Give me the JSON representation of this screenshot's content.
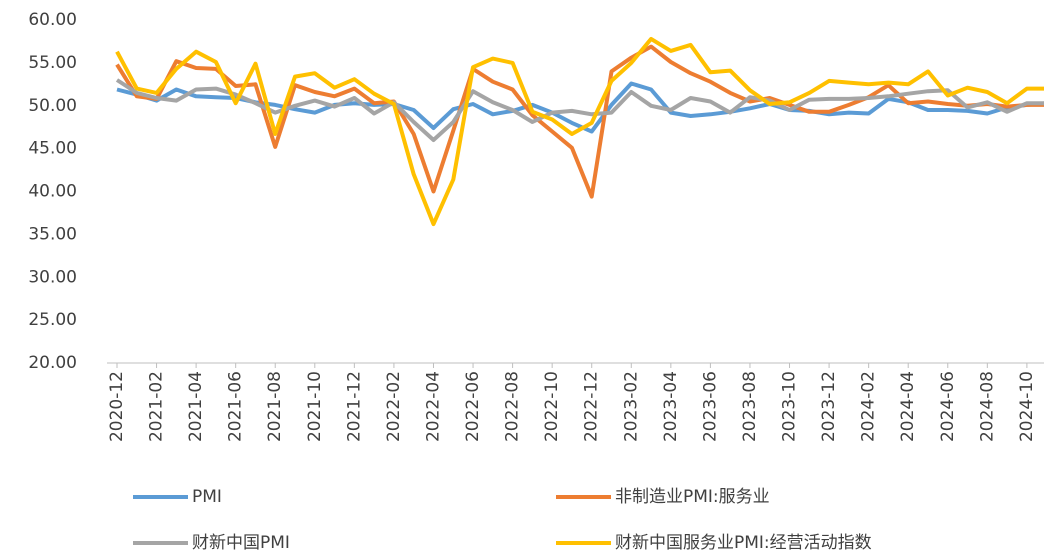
{
  "chart_data": {
    "type": "line",
    "categories": [
      "2020-12",
      null,
      "2021-02",
      null,
      "2021-04",
      null,
      "2021-06",
      null,
      "2021-08",
      null,
      "2021-10",
      null,
      "2021-12",
      null,
      "2022-02",
      null,
      "2022-04",
      null,
      "2022-06",
      null,
      "2022-08",
      null,
      "2022-10",
      null,
      "2022-12",
      null,
      "2023-02",
      null,
      "2023-04",
      null,
      "2023-06",
      null,
      "2023-08",
      null,
      "2023-10",
      null,
      "2023-12",
      null,
      "2024-02",
      null,
      "2024-04",
      null,
      "2024-06",
      null,
      "2024-08",
      null,
      "2024-10",
      null
    ],
    "series": [
      {
        "name": "PMI",
        "color": "#5b9bd5",
        "values": [
          51.9,
          51.3,
          50.6,
          51.9,
          51.1,
          51.0,
          50.9,
          50.4,
          50.1,
          49.6,
          49.2,
          50.1,
          50.3,
          50.1,
          50.2,
          49.5,
          47.4,
          49.6,
          50.2,
          49.0,
          49.4,
          50.1,
          49.2,
          48.0,
          47.0,
          50.1,
          52.6,
          51.9,
          49.2,
          48.8,
          49.0,
          49.3,
          49.7,
          50.2,
          49.5,
          49.4,
          49.0,
          49.2,
          49.1,
          50.8,
          50.4,
          49.5,
          49.5,
          49.4,
          49.1,
          49.8,
          50.1,
          50.3
        ]
      },
      {
        "name": "非制造业PMI:服务业",
        "color": "#ed7d31",
        "values": [
          54.8,
          51.1,
          50.8,
          55.2,
          54.4,
          54.3,
          52.3,
          52.5,
          45.2,
          52.4,
          51.6,
          51.1,
          52.0,
          50.3,
          50.5,
          46.7,
          40.0,
          47.1,
          54.3,
          52.8,
          51.9,
          48.9,
          47.0,
          45.1,
          39.4,
          54.0,
          55.6,
          56.9,
          55.1,
          53.8,
          52.8,
          51.5,
          50.5,
          50.9,
          50.1,
          49.3,
          49.3,
          50.1,
          51.0,
          52.4,
          50.3,
          50.5,
          50.2,
          50.0,
          50.2,
          49.9,
          50.1,
          50.1
        ]
      },
      {
        "name": "财新中国PMI",
        "color": "#a5a5a5",
        "values": [
          53.0,
          51.5,
          50.9,
          50.6,
          51.9,
          52.0,
          51.3,
          50.3,
          49.2,
          50.0,
          50.6,
          49.9,
          50.9,
          49.1,
          50.4,
          48.1,
          46.0,
          48.1,
          51.7,
          50.4,
          49.5,
          48.1,
          49.2,
          49.4,
          49.0,
          49.2,
          51.6,
          50.0,
          49.5,
          50.9,
          50.5,
          49.2,
          51.0,
          50.6,
          49.5,
          50.7,
          50.8,
          50.8,
          50.9,
          51.1,
          51.4,
          51.7,
          51.8,
          49.8,
          50.4,
          49.3,
          50.3,
          50.3
        ]
      },
      {
        "name": "财新中国服务业PMI:经营活动指数",
        "color": "#ffc000",
        "values": [
          56.3,
          52.0,
          51.5,
          54.3,
          56.3,
          55.1,
          50.3,
          54.9,
          46.7,
          53.4,
          53.8,
          52.1,
          53.1,
          51.4,
          50.2,
          42.0,
          36.2,
          41.4,
          54.5,
          55.5,
          55.0,
          49.3,
          48.4,
          46.7,
          48.0,
          52.9,
          55.0,
          57.8,
          56.4,
          57.1,
          53.9,
          54.1,
          51.8,
          50.2,
          50.4,
          51.5,
          52.9,
          52.7,
          52.5,
          52.7,
          52.5,
          54.0,
          51.2,
          52.1,
          51.6,
          50.3,
          52.0,
          52.0
        ]
      }
    ],
    "ylim": [
      20,
      60
    ],
    "yticks": [
      {
        "value": 20,
        "label": "20.00"
      },
      {
        "value": 25,
        "label": "25.00"
      },
      {
        "value": 30,
        "label": "30.00"
      },
      {
        "value": 35,
        "label": "35.00"
      },
      {
        "value": 40,
        "label": "40.00"
      },
      {
        "value": 45,
        "label": "45.00"
      },
      {
        "value": 50,
        "label": "50.00"
      },
      {
        "value": 55,
        "label": "55.00"
      },
      {
        "value": 60,
        "label": "60.00"
      }
    ]
  }
}
